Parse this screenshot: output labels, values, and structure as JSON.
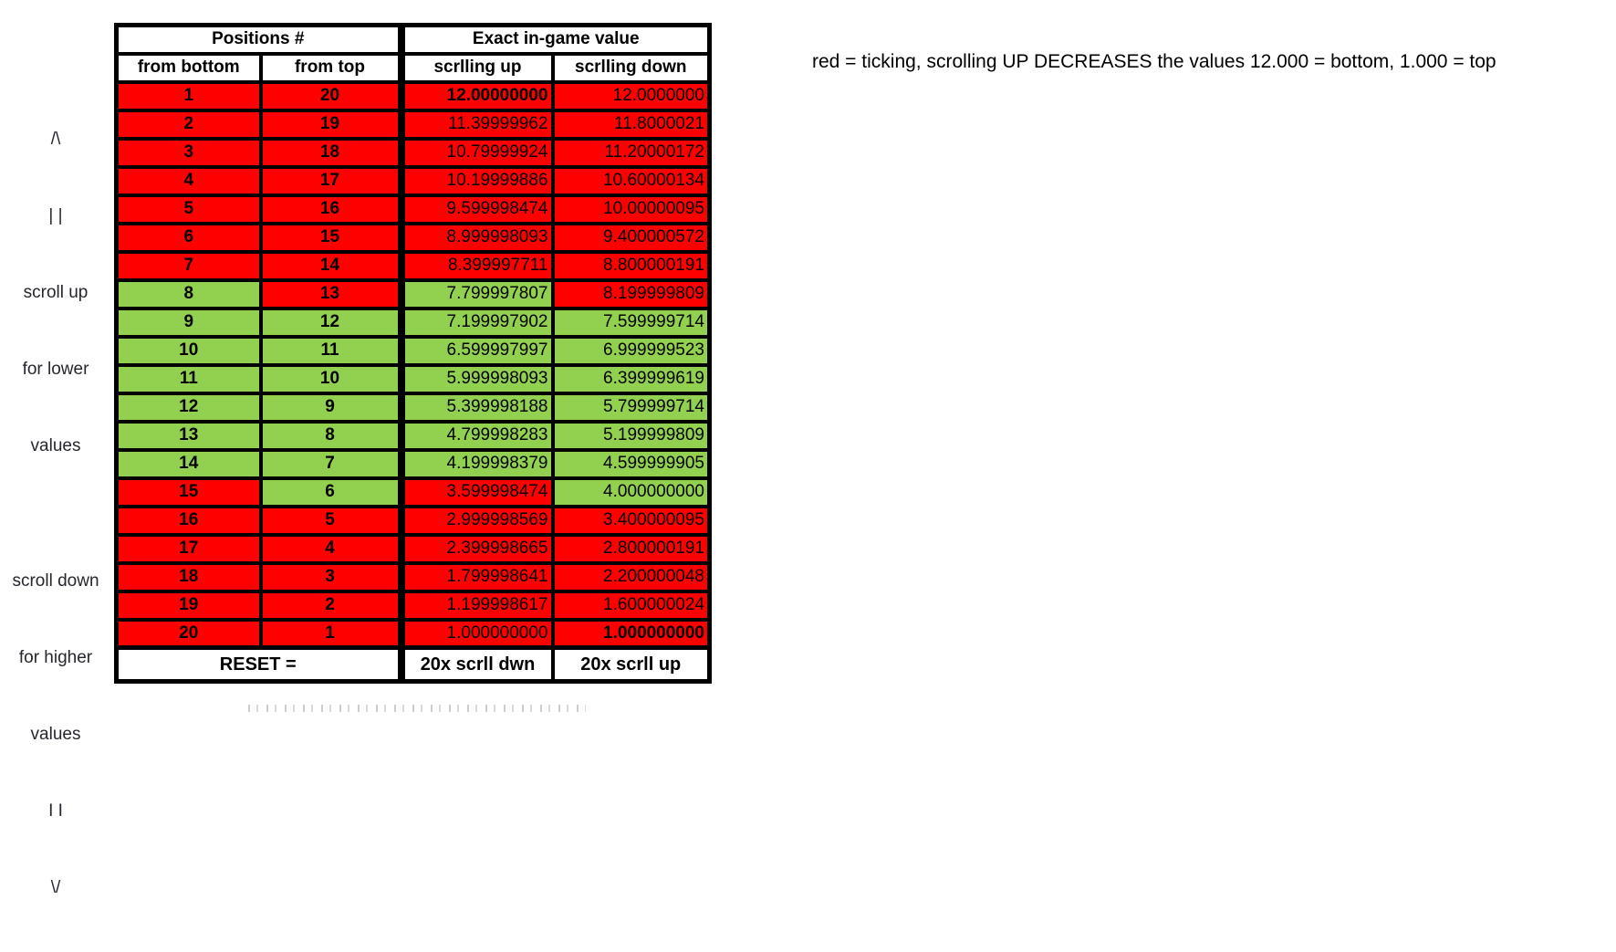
{
  "colors": {
    "r": "#ff0000",
    "g": "#92d050",
    "white": "#ffffff",
    "border": "#000000"
  },
  "table": {
    "header_groups": [
      {
        "label": "Positions #"
      },
      {
        "label": "Exact in-game value"
      }
    ],
    "columns": [
      {
        "label": "from bottom"
      },
      {
        "label": "from top"
      },
      {
        "label": "scrlling up"
      },
      {
        "label": "scrlling down"
      }
    ],
    "rows": [
      {
        "from_bottom": "1",
        "from_top": "20",
        "up": "12.00000000",
        "down": "12.0000000",
        "c": [
          "r",
          "r",
          "r",
          "r"
        ],
        "up_bold": true,
        "down_bold": false
      },
      {
        "from_bottom": "2",
        "from_top": "19",
        "up": "11.39999962",
        "down": "11.8000021",
        "c": [
          "r",
          "r",
          "r",
          "r"
        ],
        "up_bold": false,
        "down_bold": false
      },
      {
        "from_bottom": "3",
        "from_top": "18",
        "up": "10.79999924",
        "down": "11.20000172",
        "c": [
          "r",
          "r",
          "r",
          "r"
        ],
        "up_bold": false,
        "down_bold": false
      },
      {
        "from_bottom": "4",
        "from_top": "17",
        "up": "10.19999886",
        "down": "10.60000134",
        "c": [
          "r",
          "r",
          "r",
          "r"
        ],
        "up_bold": false,
        "down_bold": false
      },
      {
        "from_bottom": "5",
        "from_top": "16",
        "up": "9.599998474",
        "down": "10.00000095",
        "c": [
          "r",
          "r",
          "r",
          "r"
        ],
        "up_bold": false,
        "down_bold": false
      },
      {
        "from_bottom": "6",
        "from_top": "15",
        "up": "8.999998093",
        "down": "9.400000572",
        "c": [
          "r",
          "r",
          "r",
          "r"
        ],
        "up_bold": false,
        "down_bold": false
      },
      {
        "from_bottom": "7",
        "from_top": "14",
        "up": "8.399997711",
        "down": "8.800000191",
        "c": [
          "r",
          "r",
          "r",
          "r"
        ],
        "up_bold": false,
        "down_bold": false
      },
      {
        "from_bottom": "8",
        "from_top": "13",
        "up": "7.799997807",
        "down": "8.199999809",
        "c": [
          "g",
          "r",
          "g",
          "r"
        ],
        "up_bold": false,
        "down_bold": false
      },
      {
        "from_bottom": "9",
        "from_top": "12",
        "up": "7.199997902",
        "down": "7.599999714",
        "c": [
          "g",
          "g",
          "g",
          "g"
        ],
        "up_bold": false,
        "down_bold": false
      },
      {
        "from_bottom": "10",
        "from_top": "11",
        "up": "6.599997997",
        "down": "6.999999523",
        "c": [
          "g",
          "g",
          "g",
          "g"
        ],
        "up_bold": false,
        "down_bold": false
      },
      {
        "from_bottom": "11",
        "from_top": "10",
        "up": "5.999998093",
        "down": "6.399999619",
        "c": [
          "g",
          "g",
          "g",
          "g"
        ],
        "up_bold": false,
        "down_bold": false
      },
      {
        "from_bottom": "12",
        "from_top": "9",
        "up": "5.399998188",
        "down": "5.799999714",
        "c": [
          "g",
          "g",
          "g",
          "g"
        ],
        "up_bold": false,
        "down_bold": false
      },
      {
        "from_bottom": "13",
        "from_top": "8",
        "up": "4.799998283",
        "down": "5.199999809",
        "c": [
          "g",
          "g",
          "g",
          "g"
        ],
        "up_bold": false,
        "down_bold": false
      },
      {
        "from_bottom": "14",
        "from_top": "7",
        "up": "4.199998379",
        "down": "4.599999905",
        "c": [
          "g",
          "g",
          "g",
          "g"
        ],
        "up_bold": false,
        "down_bold": false
      },
      {
        "from_bottom": "15",
        "from_top": "6",
        "up": "3.599998474",
        "down": "4.000000000",
        "c": [
          "r",
          "g",
          "r",
          "g"
        ],
        "up_bold": false,
        "down_bold": false
      },
      {
        "from_bottom": "16",
        "from_top": "5",
        "up": "2.999998569",
        "down": "3.400000095",
        "c": [
          "r",
          "r",
          "r",
          "r"
        ],
        "up_bold": false,
        "down_bold": false
      },
      {
        "from_bottom": "17",
        "from_top": "4",
        "up": "2.399998665",
        "down": "2.800000191",
        "c": [
          "r",
          "r",
          "r",
          "r"
        ],
        "up_bold": false,
        "down_bold": false
      },
      {
        "from_bottom": "18",
        "from_top": "3",
        "up": "1.799998641",
        "down": "2.200000048",
        "c": [
          "r",
          "r",
          "r",
          "r"
        ],
        "up_bold": false,
        "down_bold": false
      },
      {
        "from_bottom": "19",
        "from_top": "2",
        "up": "1.199998617",
        "down": "1.600000024",
        "c": [
          "r",
          "r",
          "r",
          "r"
        ],
        "up_bold": false,
        "down_bold": false
      },
      {
        "from_bottom": "20",
        "from_top": "1",
        "up": "1.000000000",
        "down": "1.000000000",
        "c": [
          "r",
          "r",
          "r",
          "r"
        ],
        "up_bold": false,
        "down_bold": true
      }
    ],
    "footer": {
      "reset_label": "RESET =",
      "scroll_down_action": "20x scrll dwn",
      "scroll_up_action": "20x scrll up"
    }
  },
  "annotations": {
    "top_left_lines": [
      "/\\",
      "| |",
      "scroll up",
      "for lower",
      "values"
    ],
    "bottom_left_lines": [
      "scroll down",
      "for higher",
      "values",
      "I I",
      "\\/"
    ],
    "right_note": "red = ticking, scrolling UP DECREASES the values 12.000 = bottom, 1.000 = top"
  }
}
